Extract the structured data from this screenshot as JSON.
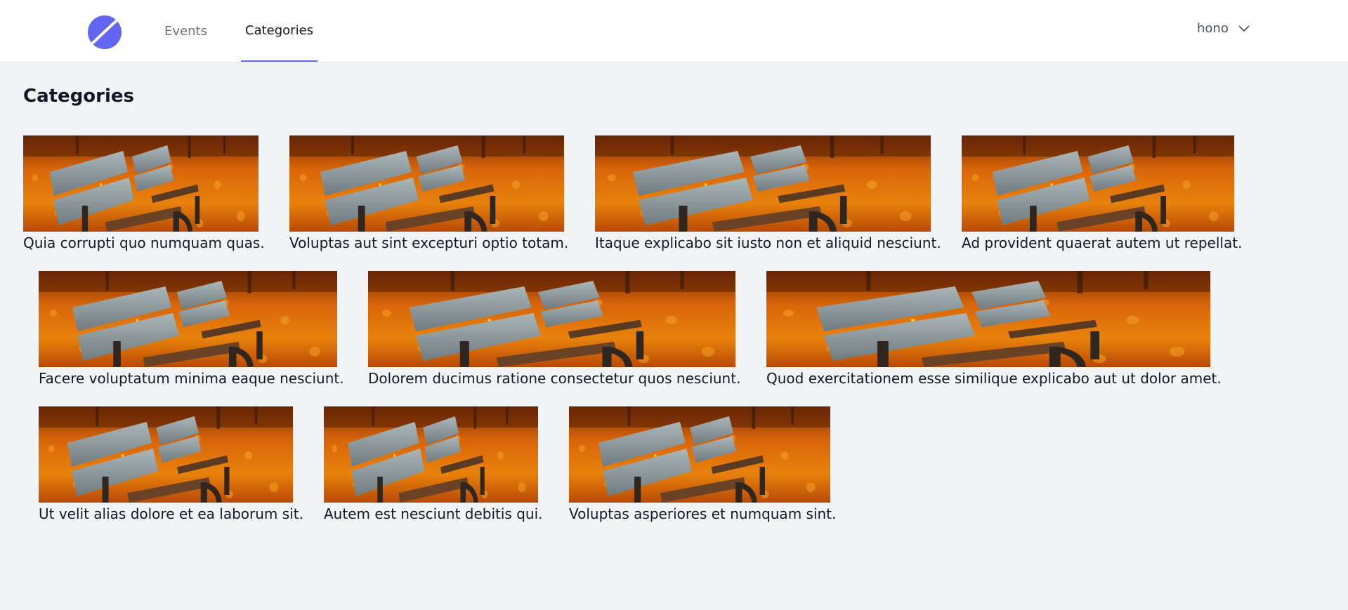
{
  "nav": {
    "items": [
      {
        "label": "Events",
        "active": false
      },
      {
        "label": "Categories",
        "active": true
      }
    ],
    "user": {
      "name": "hono"
    }
  },
  "page": {
    "title": "Categories"
  },
  "categories": [
    {
      "name": "Quia corrupti quo numquam quas."
    },
    {
      "name": "Voluptas aut sint excepturi optio totam."
    },
    {
      "name": "Itaque explicabo sit iusto non et aliquid nesciunt."
    },
    {
      "name": "Ad provident quaerat autem ut repellat."
    },
    {
      "name": "Facere voluptatum minima eaque nesciunt."
    },
    {
      "name": "Dolorem ducimus ratione consectetur quos nesciunt."
    },
    {
      "name": "Quod exercitationem esse similique explicabo aut ut dolor amet."
    },
    {
      "name": "Ut velit alias dolore et ea laborum sit."
    },
    {
      "name": "Autem est nesciunt debitis qui."
    },
    {
      "name": "Voluptas asperiores et numquam sint."
    }
  ],
  "colors": {
    "accent": "#6366f1",
    "background": "#f2f3f5",
    "header": "#ffffff"
  }
}
